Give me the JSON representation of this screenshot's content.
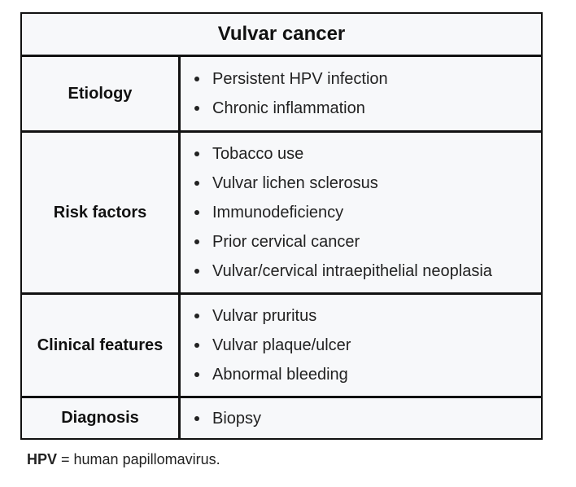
{
  "table": {
    "title": "Vulvar cancer",
    "rows": [
      {
        "label": "Etiology",
        "items": [
          "Persistent HPV infection",
          "Chronic inflammation"
        ]
      },
      {
        "label": "Risk factors",
        "items": [
          "Tobacco use",
          "Vulvar lichen sclerosus",
          "Immunodeficiency",
          "Prior cervical cancer",
          "Vulvar/cervical intraepithelial neoplasia"
        ]
      },
      {
        "label": "Clinical features",
        "items": [
          "Vulvar pruritus",
          "Vulvar plaque/ulcer",
          "Abnormal bleeding"
        ]
      },
      {
        "label": "Diagnosis",
        "items": [
          "Biopsy"
        ]
      }
    ]
  },
  "footnote": {
    "abbr": "HPV",
    "text": " = human papillomavirus."
  }
}
